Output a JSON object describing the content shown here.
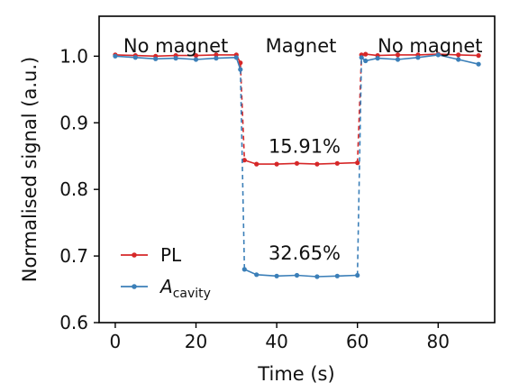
{
  "chart_data": {
    "type": "line",
    "xlabel": "Time (s)",
    "ylabel": "Normalised signal (a.u.)",
    "xlim": [
      -4,
      94
    ],
    "ylim": [
      0.6,
      1.06
    ],
    "xticks": [
      "0",
      "20",
      "40",
      "60",
      "80"
    ],
    "xtick_values": [
      0,
      20,
      40,
      60,
      80
    ],
    "yticks": [
      "0.6",
      "0.7",
      "0.8",
      "0.9",
      "1.0"
    ],
    "ytick_values": [
      0.6,
      0.7,
      0.8,
      0.9,
      1.0
    ],
    "grid": false,
    "legend_position": "lower-left",
    "regions": [
      {
        "label": "No magnet",
        "x_center": 15
      },
      {
        "label": "Magnet",
        "x_center": 46
      },
      {
        "label": "No magnet",
        "x_center": 78
      }
    ],
    "annotations": [
      {
        "text": "15.91%",
        "x": 46,
        "y": 0.855
      },
      {
        "text": "32.65%",
        "x": 46,
        "y": 0.695
      }
    ],
    "series": [
      {
        "name": "PL",
        "name_sub": "",
        "color": "#d62728",
        "x": [
          0,
          5,
          10,
          15,
          20,
          25,
          30,
          31,
          32,
          35,
          40,
          45,
          50,
          55,
          60,
          61,
          62,
          65,
          70,
          75,
          80,
          85,
          90
        ],
        "values": [
          1.002,
          1.001,
          1.0,
          1.001,
          1.001,
          1.002,
          1.002,
          0.99,
          0.844,
          0.838,
          0.838,
          0.839,
          0.838,
          0.839,
          0.84,
          1.002,
          1.003,
          1.001,
          1.002,
          1.002,
          1.003,
          1.002,
          1.001
        ]
      },
      {
        "name": "A",
        "name_sub": "cavity",
        "color": "#3b7fb8",
        "x": [
          0,
          5,
          10,
          15,
          20,
          25,
          30,
          31,
          32,
          35,
          40,
          45,
          50,
          55,
          60,
          61,
          62,
          65,
          70,
          75,
          80,
          85,
          90
        ],
        "values": [
          1.0,
          0.998,
          0.996,
          0.997,
          0.995,
          0.997,
          0.998,
          0.98,
          0.68,
          0.672,
          0.67,
          0.671,
          0.669,
          0.67,
          0.671,
          0.998,
          0.993,
          0.997,
          0.995,
          0.998,
          1.002,
          0.995,
          0.988
        ]
      }
    ]
  }
}
